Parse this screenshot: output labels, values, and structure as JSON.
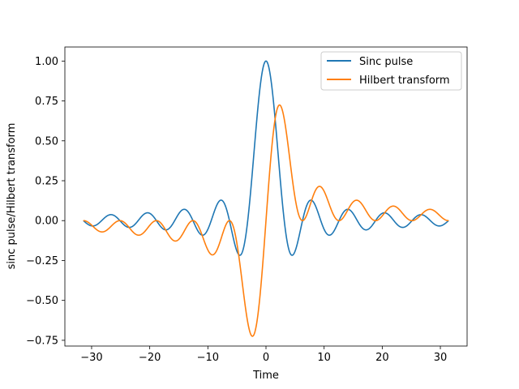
{
  "chart_data": {
    "type": "line",
    "title": "",
    "xlabel": "Time",
    "ylabel": "sinc pulse/Hilbert transform",
    "xlim": [
      -34.6,
      34.6
    ],
    "ylim": [
      -0.786,
      1.088
    ],
    "xticks": [
      -30,
      -20,
      -10,
      0,
      10,
      20,
      30
    ],
    "xtick_labels": [
      "−30",
      "−20",
      "−10",
      "0",
      "10",
      "20",
      "30"
    ],
    "yticks": [
      -0.75,
      -0.5,
      -0.25,
      0.0,
      0.25,
      0.5,
      0.75,
      1.0
    ],
    "ytick_labels": [
      "−0.75",
      "−0.50",
      "−0.25",
      "0.00",
      "0.25",
      "0.50",
      "0.75",
      "1.00"
    ],
    "grid": false,
    "legend_position": "upper right",
    "x": [
      -31.42,
      -28,
      -25,
      -22,
      -19,
      -16,
      -13,
      -10,
      -8,
      -6,
      -5,
      -4,
      -3,
      -2,
      -1,
      0,
      1,
      2,
      3,
      4,
      5,
      6,
      8,
      10,
      13,
      16,
      19,
      22,
      25,
      28,
      31.42
    ],
    "series": [
      {
        "name": "Sinc pulse",
        "color": "#1f77b4",
        "description": "Sampled key points of the sinc pulse; curve drawn as sin(x)/x",
        "values": [
          0.0,
          0.01,
          -0.005,
          -0.0,
          0.008,
          -0.018,
          0.032,
          -0.054,
          0.124,
          -0.047,
          -0.192,
          -0.189,
          0.047,
          0.455,
          0.841,
          1.0,
          0.841,
          0.455,
          0.047,
          -0.189,
          -0.192,
          -0.047,
          0.124,
          -0.054,
          0.032,
          -0.018,
          0.008,
          -0.0,
          -0.005,
          0.01,
          0.0
        ]
      },
      {
        "name": "Hilbert transform",
        "color": "#ff7f0e",
        "description": "Sampled key points of the Hilbert transform; curve drawn as (1-cos(x))/x",
        "values": [
          0.0,
          -0.068,
          -0.0,
          -0.0,
          -0.063,
          -0.06,
          -0.0,
          -0.184,
          -0.0,
          -0.0,
          -0.143,
          -0.413,
          -0.663,
          -0.708,
          -0.46,
          0.0,
          0.46,
          0.708,
          0.663,
          0.413,
          0.143,
          0.0,
          0.018,
          0.184,
          0.0,
          0.06,
          0.063,
          0.0,
          0.0,
          0.068,
          0.0
        ]
      }
    ]
  }
}
